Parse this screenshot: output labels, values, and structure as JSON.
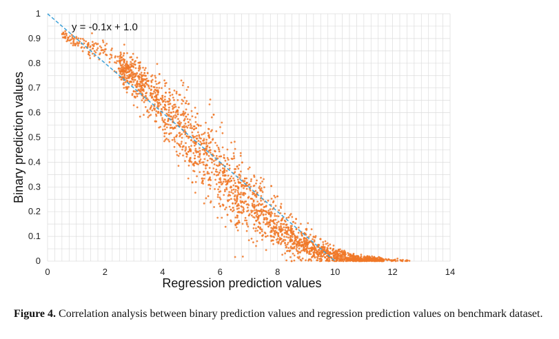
{
  "chart_data": {
    "type": "scatter",
    "xlabel": "Regression prediction values",
    "ylabel": "Binary prediction values",
    "xlim": [
      0,
      14
    ],
    "ylim": [
      0,
      1
    ],
    "x_ticks": [
      "0",
      "2",
      "4",
      "6",
      "8",
      "10",
      "12",
      "14"
    ],
    "y_ticks": [
      "0",
      "0.1",
      "0.2",
      "0.3",
      "0.4",
      "0.5",
      "0.6",
      "0.7",
      "0.8",
      "0.9",
      "1"
    ],
    "grid": true,
    "point_color": "#f07828",
    "trend_line": {
      "label": "y = -0.1x + 1.0",
      "slope": -0.1,
      "intercept": 1.0,
      "color": "#3aa0d8",
      "style": "dashed"
    },
    "density_profile": {
      "x": [
        0.5,
        1,
        2,
        3,
        4,
        5,
        6,
        7,
        8,
        9,
        10,
        11,
        12,
        12.6
      ],
      "center_y": [
        0.91,
        0.89,
        0.84,
        0.75,
        0.63,
        0.49,
        0.35,
        0.23,
        0.13,
        0.06,
        0.02,
        0.005,
        0.002,
        0.0
      ],
      "spread_y": [
        0.01,
        0.015,
        0.02,
        0.04,
        0.06,
        0.08,
        0.085,
        0.075,
        0.05,
        0.03,
        0.015,
        0.008,
        0.004,
        0.002
      ]
    }
  },
  "caption": {
    "label": "Figure 4.",
    "text": "Correlation analysis between binary prediction values and regression prediction values on benchmark dataset."
  }
}
